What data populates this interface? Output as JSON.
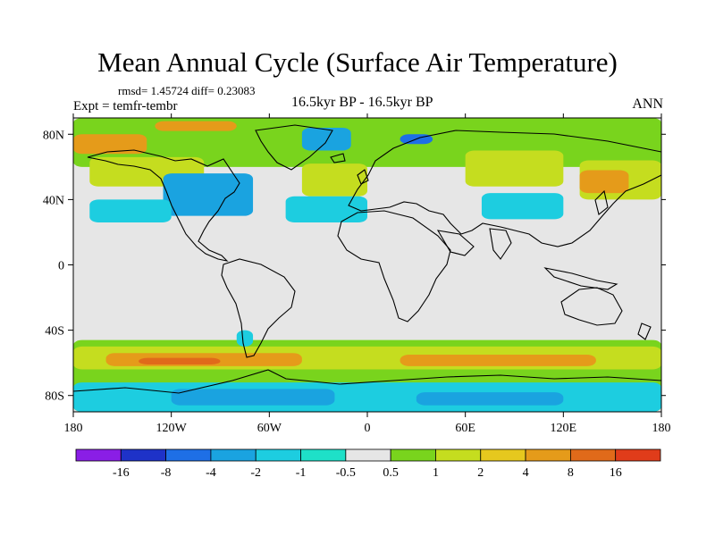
{
  "title": "Mean Annual Cycle (Surface Air Temperature)",
  "stats": "rmsd= 1.45724 diff= 0.23083",
  "experiment": "Expt = temfr-tembr",
  "period": "16.5kyr BP - 16.5kyr BP",
  "season": "ANN",
  "map": {
    "projection": "cylindrical-equidistant",
    "lon_range": [
      -180,
      180
    ],
    "lat_range": [
      -90,
      90
    ],
    "lon_ticks": [
      {
        "value": -180,
        "label": "180"
      },
      {
        "value": -120,
        "label": "120W"
      },
      {
        "value": -60,
        "label": "60W"
      },
      {
        "value": 0,
        "label": "0"
      },
      {
        "value": 60,
        "label": "60E"
      },
      {
        "value": 120,
        "label": "120E"
      },
      {
        "value": 180,
        "label": "180"
      }
    ],
    "lat_ticks": [
      {
        "value": 80,
        "label": "80N"
      },
      {
        "value": 40,
        "label": "40N"
      },
      {
        "value": 0,
        "label": "0"
      },
      {
        "value": -40,
        "label": "40S"
      },
      {
        "value": -80,
        "label": "80S"
      }
    ],
    "background_color": "#e6e6e6",
    "field_regions": [
      {
        "level": 1,
        "color": "#79d41d",
        "lon": [
          -180,
          180
        ],
        "lat": [
          60,
          90
        ]
      },
      {
        "level": 4,
        "color": "#e59b1a",
        "lon": [
          -180,
          -135
        ],
        "lat": [
          68,
          80
        ]
      },
      {
        "level": 2,
        "color": "#c5dd1f",
        "lon": [
          -170,
          -100
        ],
        "lat": [
          48,
          66
        ]
      },
      {
        "level": -2,
        "color": "#1aa3e0",
        "lon": [
          -125,
          -70
        ],
        "lat": [
          30,
          56
        ]
      },
      {
        "level": -1,
        "color": "#1dcde0",
        "lon": [
          -170,
          -120
        ],
        "lat": [
          26,
          40
        ]
      },
      {
        "level": 2,
        "color": "#c5dd1f",
        "lon": [
          -40,
          0
        ],
        "lat": [
          42,
          62
        ]
      },
      {
        "level": -2,
        "color": "#1aa3e0",
        "lon": [
          -40,
          -10
        ],
        "lat": [
          70,
          84
        ]
      },
      {
        "level": -4,
        "color": "#1e6fe6",
        "lon": [
          20,
          40
        ],
        "lat": [
          74,
          80
        ]
      },
      {
        "level": 4,
        "color": "#e59b1a",
        "lon": [
          -130,
          -80
        ],
        "lat": [
          82,
          88
        ]
      },
      {
        "level": 2,
        "color": "#c5dd1f",
        "lon": [
          60,
          120
        ],
        "lat": [
          48,
          70
        ]
      },
      {
        "level": -1,
        "color": "#1dcde0",
        "lon": [
          70,
          120
        ],
        "lat": [
          28,
          44
        ]
      },
      {
        "level": -1,
        "color": "#1dcde0",
        "lon": [
          -50,
          0
        ],
        "lat": [
          26,
          42
        ]
      },
      {
        "level": 2,
        "color": "#c5dd1f",
        "lon": [
          130,
          180
        ],
        "lat": [
          40,
          64
        ]
      },
      {
        "level": 4,
        "color": "#e59b1a",
        "lon": [
          130,
          160
        ],
        "lat": [
          44,
          58
        ]
      },
      {
        "level": 1,
        "color": "#79d41d",
        "lon": [
          -180,
          180
        ],
        "lat": [
          -90,
          -46
        ]
      },
      {
        "level": 2,
        "color": "#c5dd1f",
        "lon": [
          -180,
          180
        ],
        "lat": [
          -64,
          -50
        ]
      },
      {
        "level": 4,
        "color": "#e59b1a",
        "lon": [
          -160,
          -40
        ],
        "lat": [
          -62,
          -54
        ]
      },
      {
        "level": 4,
        "color": "#e59b1a",
        "lon": [
          20,
          140
        ],
        "lat": [
          -62,
          -55
        ]
      },
      {
        "level": 8,
        "color": "#e06a1a",
        "lon": [
          -140,
          -90
        ],
        "lat": [
          -61,
          -57
        ]
      },
      {
        "level": -1,
        "color": "#1dcde0",
        "lon": [
          -180,
          180
        ],
        "lat": [
          -90,
          -72
        ]
      },
      {
        "level": -2,
        "color": "#1aa3e0",
        "lon": [
          -120,
          -20
        ],
        "lat": [
          -86,
          -76
        ]
      },
      {
        "level": -2,
        "color": "#1aa3e0",
        "lon": [
          30,
          120
        ],
        "lat": [
          -86,
          -78
        ]
      },
      {
        "level": -1,
        "color": "#1dcde0",
        "lon": [
          -80,
          -70
        ],
        "lat": [
          -50,
          -40
        ]
      }
    ]
  },
  "colorbar": {
    "colors": [
      "#8a1ee6",
      "#1e32c8",
      "#1e6fe6",
      "#1aa3e0",
      "#1dcde0",
      "#1ee0c8",
      "#e6e6e6",
      "#79d41d",
      "#c5dd1f",
      "#e6c81e",
      "#e59b1a",
      "#e06a1a",
      "#e03c1a"
    ],
    "labels": [
      "-16",
      "-8",
      "-4",
      "-2",
      "-1",
      "-0.5",
      "0.5",
      "1",
      "2",
      "4",
      "8",
      "16"
    ]
  }
}
